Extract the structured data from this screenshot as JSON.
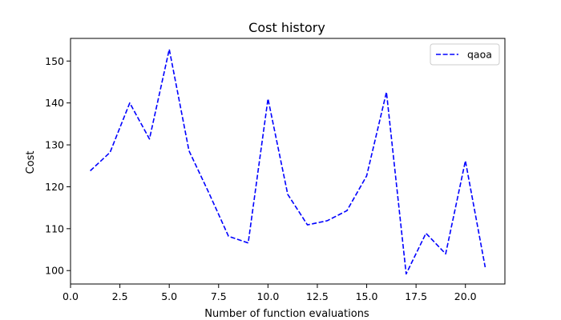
{
  "chart_data": {
    "type": "line",
    "title": "Cost history",
    "xlabel": "Number of function evaluations",
    "ylabel": "Cost",
    "xlim": [
      0,
      22
    ],
    "ylim": [
      96.8,
      155.4
    ],
    "xticks": [
      0.0,
      2.5,
      5.0,
      7.5,
      10.0,
      12.5,
      15.0,
      17.5,
      20.0
    ],
    "xtick_labels": [
      "0.0",
      "2.5",
      "5.0",
      "7.5",
      "10.0",
      "12.5",
      "15.0",
      "17.5",
      "20.0"
    ],
    "yticks": [
      100,
      110,
      120,
      130,
      140,
      150
    ],
    "ytick_labels": [
      "100",
      "110",
      "120",
      "130",
      "140",
      "150"
    ],
    "grid": false,
    "legend": {
      "position": "top-right"
    },
    "series": [
      {
        "name": "qaoa",
        "color": "#0000ff",
        "linestyle": "dashed",
        "x": [
          1,
          2,
          3,
          4,
          5,
          6,
          7,
          8,
          9,
          10,
          11,
          12,
          13,
          14,
          15,
          16,
          17,
          18,
          19,
          20,
          21
        ],
        "y": [
          123.8,
          128.2,
          140.0,
          131.4,
          152.8,
          128.6,
          118.6,
          108.2,
          106.6,
          141.0,
          118.2,
          110.9,
          111.9,
          114.3,
          122.6,
          142.6,
          99.2,
          108.9,
          104.0,
          126.2,
          100.8
        ]
      }
    ]
  }
}
